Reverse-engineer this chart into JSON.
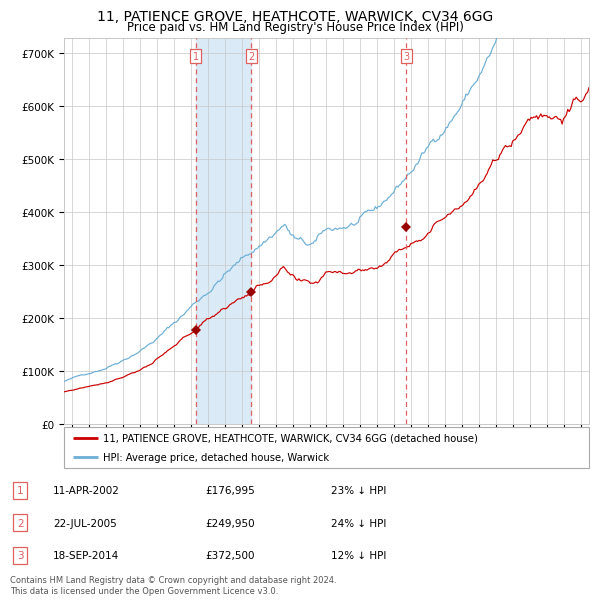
{
  "title": "11, PATIENCE GROVE, HEATHCOTE, WARWICK, CV34 6GG",
  "subtitle": "Price paid vs. HM Land Registry's House Price Index (HPI)",
  "title_fontsize": 10,
  "subtitle_fontsize": 8.5,
  "xlim": [
    1994.5,
    2025.5
  ],
  "ylim": [
    0,
    730000
  ],
  "yticks": [
    0,
    100000,
    200000,
    300000,
    400000,
    500000,
    600000,
    700000
  ],
  "ytick_labels": [
    "£0",
    "£100K",
    "£200K",
    "£300K",
    "£400K",
    "£500K",
    "£600K",
    "£700K"
  ],
  "hpi_color": "#6baed6",
  "price_color": "#cc0000",
  "marker_color": "#990000",
  "vline_color": "#e06060",
  "shade_color": "#daeaf7",
  "grid_color": "#c8c8c8",
  "bg_color": "#ffffff",
  "purchase_dates": [
    2002.274,
    2005.554,
    2014.716
  ],
  "purchase_prices": [
    176995,
    249950,
    372500
  ],
  "purchase_labels": [
    "1",
    "2",
    "3"
  ],
  "legend_line1": "11, PATIENCE GROVE, HEATHCOTE, WARWICK, CV34 6GG (detached house)",
  "legend_line2": "HPI: Average price, detached house, Warwick",
  "table_entries": [
    {
      "num": "1",
      "date": "11-APR-2002",
      "price": "£176,995",
      "pct": "23% ↓ HPI"
    },
    {
      "num": "2",
      "date": "22-JUL-2005",
      "price": "£249,950",
      "pct": "24% ↓ HPI"
    },
    {
      "num": "3",
      "date": "18-SEP-2014",
      "price": "£372,500",
      "pct": "12% ↓ HPI"
    }
  ],
  "footnote": "Contains HM Land Registry data © Crown copyright and database right 2024.\nThis data is licensed under the Open Government Licence v3.0."
}
